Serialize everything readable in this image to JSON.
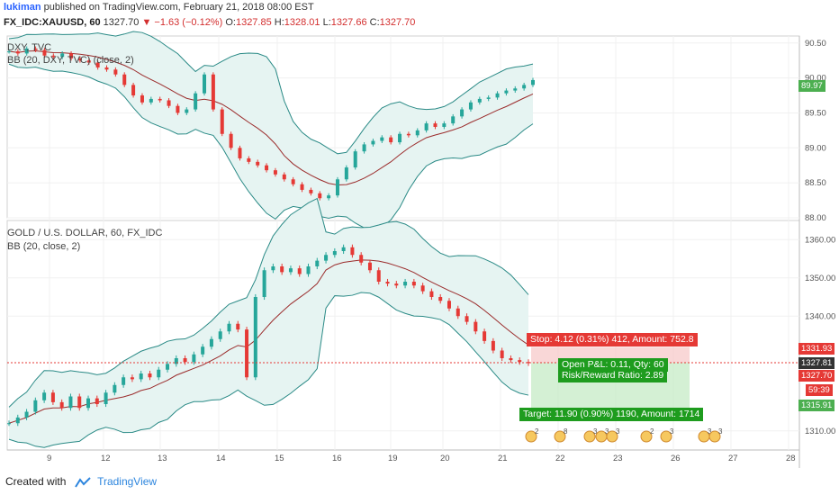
{
  "header": {
    "user": "lukiman",
    "published": "published on TradingView.com, February 21, 2018 08:00 EST",
    "symbol": "FX_IDC:XAUUSD, 60",
    "last": "1327.70",
    "change": "−1.63 (−0.12%)",
    "o_label": "O:",
    "o": "1327.85",
    "h_label": "H:",
    "h": "1328.01",
    "l_label": "L:",
    "l": "1327.66",
    "c_label": "C:",
    "c": "1327.70"
  },
  "pane1": {
    "legend1": "DXY, TVC",
    "legend2": "BB (20, DXY, TVC) (close, 2)",
    "ticks": [
      "90.50",
      "90.00",
      "89.50",
      "89.00",
      "88.50",
      "88.00"
    ],
    "last_badge": "89.97",
    "colors": {
      "band": "#2a8a86",
      "basis": "#9b2c2c",
      "fill": "#e6f4f2",
      "badge": "#4caf50"
    }
  },
  "pane2": {
    "legend1": "GOLD / U.S. DOLLAR, 60, FX_IDC",
    "legend2": "BB (20, close, 2)",
    "ticks": [
      "1360.00",
      "1350.00",
      "1340.00",
      "1310.00"
    ],
    "badges": {
      "stop": "1331.93",
      "last": "1327.81",
      "close": "1327.70",
      "timer": "59:39",
      "target": "1315.91"
    },
    "stop_label": "Stop: 4.12 (0.31%) 412, Amount: 752.8",
    "open_pnl": "Open P&L: 0.11, Qty: 60",
    "risk_reward": "Risk/Reward Ratio: 2.89",
    "target_label": "Target: 11.90 (0.90%) 1190, Amount: 1714",
    "events": [
      "2",
      "8",
      "3",
      "3",
      "3",
      "2",
      "3",
      "3",
      "3"
    ]
  },
  "xaxis": [
    "9",
    "12",
    "13",
    "14",
    "15",
    "16",
    "19",
    "20",
    "21",
    "22",
    "23",
    "26",
    "27",
    "28"
  ],
  "footer": {
    "created": "Created with",
    "brand": "TradingView"
  },
  "chart_data": [
    {
      "type": "line",
      "title": "DXY, TVC",
      "series": [
        {
          "name": "DXY",
          "values": [
            90.38,
            90.35,
            90.42,
            90.4,
            90.32,
            90.3,
            90.35,
            90.28,
            90.25,
            90.22,
            90.15,
            90.12,
            90.05,
            89.9,
            89.75,
            89.65,
            89.7,
            89.68,
            89.6,
            89.5,
            89.55,
            89.78,
            90.05,
            89.55,
            89.2,
            89.0,
            88.85,
            88.8,
            88.75,
            88.68,
            88.62,
            88.55,
            88.48,
            88.4,
            88.35,
            88.28,
            88.32,
            88.55,
            88.72,
            88.95,
            89.05,
            89.1,
            89.15,
            89.08,
            89.2,
            89.18,
            89.25,
            89.35,
            89.3,
            89.35,
            89.45,
            89.55,
            89.65,
            89.7,
            89.72,
            89.78,
            89.82,
            89.85,
            89.9,
            89.97
          ]
        }
      ],
      "x_ticks": [
        "9",
        "12",
        "13",
        "14",
        "15",
        "16",
        "19",
        "20",
        "21",
        "22",
        "23",
        "26",
        "27",
        "28"
      ],
      "ylim": [
        88.0,
        90.6
      ],
      "grid": true
    },
    {
      "type": "line",
      "title": "GOLD / U.S. DOLLAR, 60, FX_IDC",
      "series": [
        {
          "name": "GOLD",
          "values": [
            1312.0,
            1313.5,
            1315.0,
            1318.0,
            1320.0,
            1317.5,
            1316.0,
            1319.0,
            1316.0,
            1318.5,
            1317.0,
            1320.0,
            1322.0,
            1324.0,
            1323.5,
            1325.0,
            1324.0,
            1326.0,
            1327.5,
            1329.0,
            1328.0,
            1330.0,
            1332.0,
            1334.0,
            1336.0,
            1338.0,
            1336.5,
            1324.0,
            1345.0,
            1352.0,
            1353.0,
            1351.5,
            1352.5,
            1351.0,
            1353.0,
            1354.5,
            1356.0,
            1357.0,
            1358.0,
            1356.0,
            1354.0,
            1352.0,
            1349.0,
            1348.5,
            1348.0,
            1349.0,
            1348.0,
            1346.5,
            1345.0,
            1344.0,
            1342.0,
            1340.0,
            1338.5,
            1336.0,
            1333.5,
            1331.0,
            1329.0,
            1328.5,
            1328.0,
            1327.7
          ]
        }
      ],
      "x_ticks": [
        "9",
        "12",
        "13",
        "14",
        "15",
        "16",
        "19",
        "20",
        "21",
        "22",
        "23",
        "26",
        "27",
        "28"
      ],
      "ylim": [
        1305,
        1365
      ],
      "grid": true
    }
  ]
}
